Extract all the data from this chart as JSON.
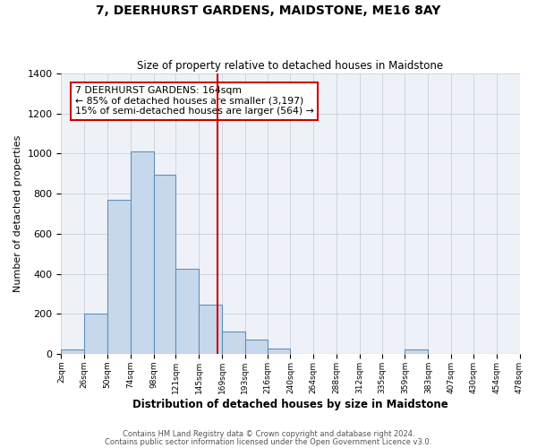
{
  "title": "7, DEERHURST GARDENS, MAIDSTONE, ME16 8AY",
  "subtitle": "Size of property relative to detached houses in Maidstone",
  "xlabel": "Distribution of detached houses by size in Maidstone",
  "ylabel": "Number of detached properties",
  "bar_edges": [
    2,
    26,
    50,
    74,
    98,
    121,
    145,
    169,
    193,
    216,
    240,
    264,
    288,
    312,
    335,
    359,
    383,
    407,
    430,
    454,
    478
  ],
  "bar_heights": [
    20,
    200,
    770,
    1010,
    895,
    425,
    245,
    110,
    70,
    25,
    0,
    0,
    0,
    0,
    0,
    20,
    0,
    0,
    0,
    0
  ],
  "tick_labels": [
    "2sqm",
    "26sqm",
    "50sqm",
    "74sqm",
    "98sqm",
    "121sqm",
    "145sqm",
    "169sqm",
    "193sqm",
    "216sqm",
    "240sqm",
    "264sqm",
    "288sqm",
    "312sqm",
    "335sqm",
    "359sqm",
    "383sqm",
    "407sqm",
    "430sqm",
    "454sqm",
    "478sqm"
  ],
  "vline_x": 164,
  "vline_color": "#cc0000",
  "bar_facecolor": "#c8d8ec",
  "bar_edgecolor": "#6090b8",
  "ylim": [
    0,
    1400
  ],
  "yticks": [
    0,
    200,
    400,
    600,
    800,
    1000,
    1200,
    1400
  ],
  "annotation_title": "7 DEERHURST GARDENS: 164sqm",
  "annotation_line1": "← 85% of detached houses are smaller (3,197)",
  "annotation_line2": "15% of semi-detached houses are larger (564) →",
  "grid_color": "#c8d0dc",
  "bg_color": "#eef2f8",
  "footnote1": "Contains HM Land Registry data © Crown copyright and database right 2024.",
  "footnote2": "Contains public sector information licensed under the Open Government Licence v3.0."
}
